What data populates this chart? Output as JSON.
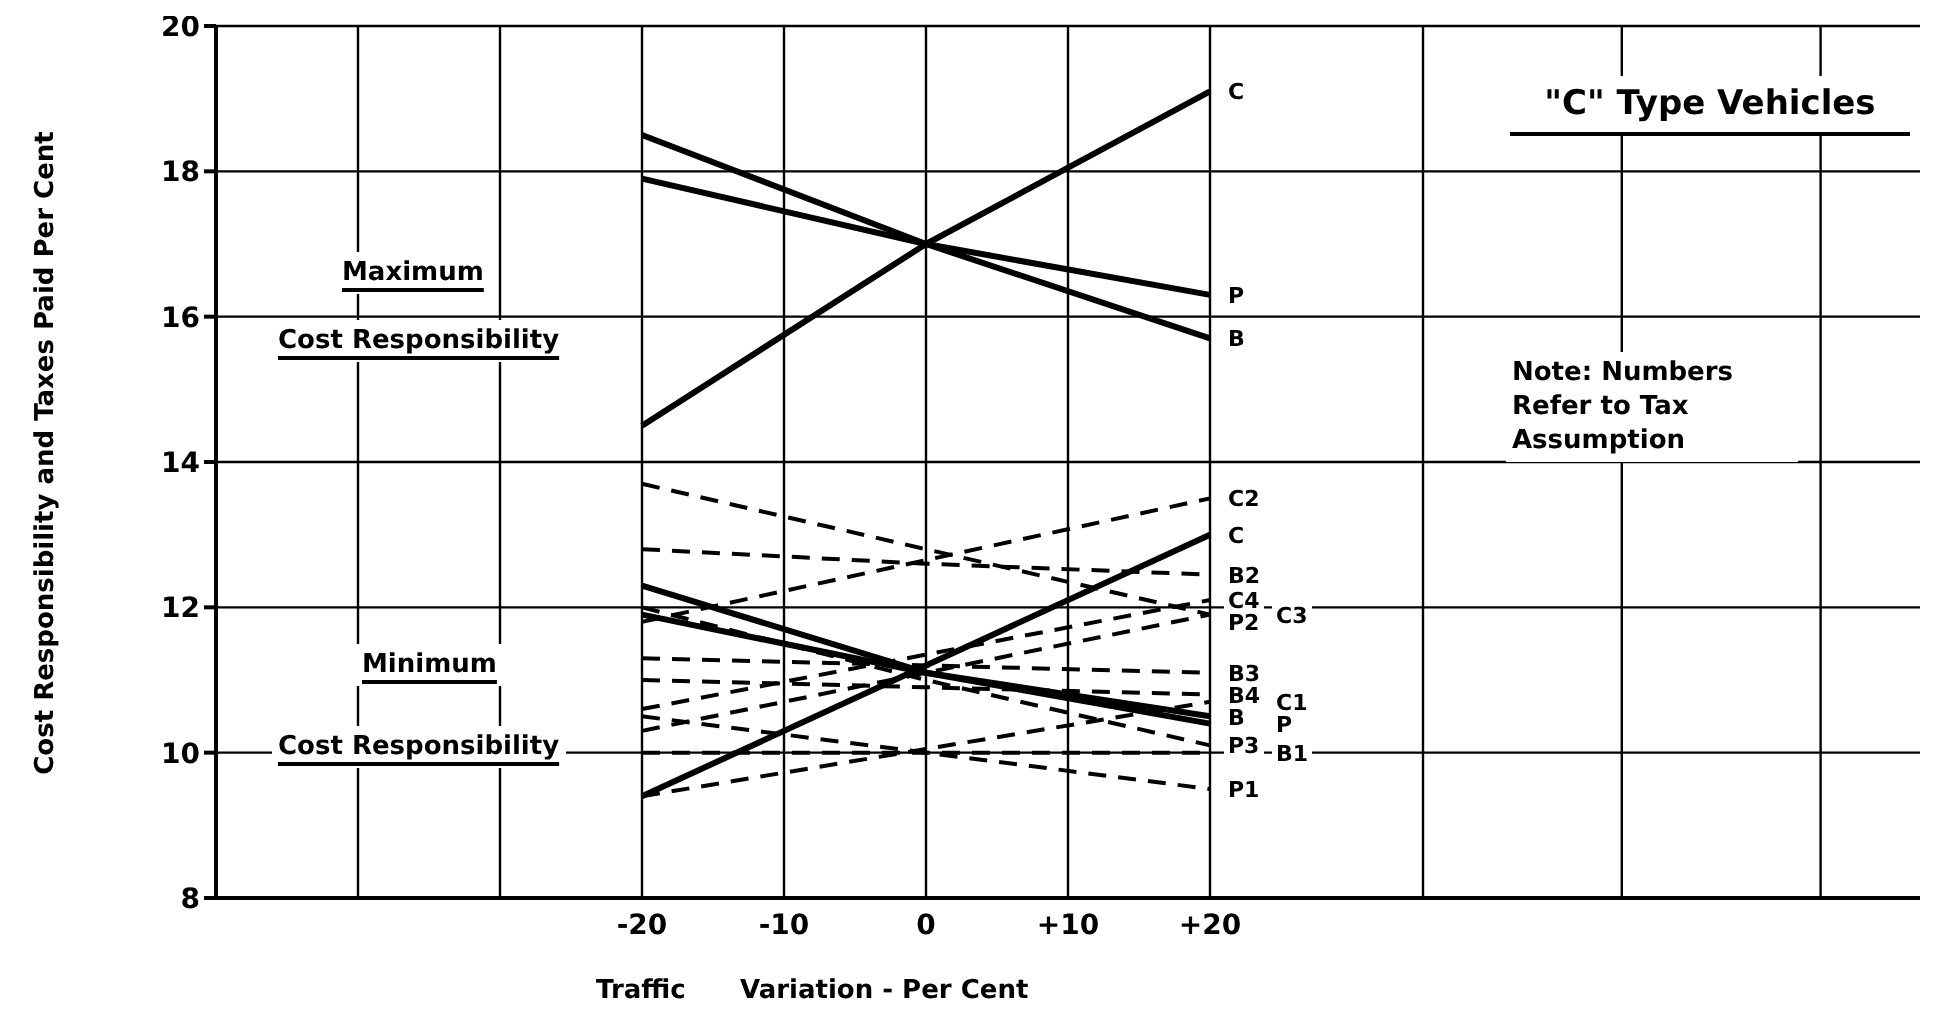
{
  "chart_data": {
    "type": "line",
    "title": "\"C\" Type Vehicles",
    "xlabel": "Traffic      Variation - Per Cent",
    "ylabel": "Cost Responsibility and Taxes Paid Per Cent",
    "x": [
      -20,
      0,
      20
    ],
    "xlim": [
      -50,
      70
    ],
    "xticks": [
      {
        "value": -50,
        "label": null
      },
      {
        "value": -40,
        "label": null
      },
      {
        "value": -30,
        "label": null
      },
      -20,
      -10,
      0,
      {
        "value": 10,
        "label": "+10"
      },
      {
        "value": 20,
        "label": "+20"
      },
      {
        "value": 35,
        "label": null
      },
      {
        "value": 49,
        "label": null
      },
      {
        "value": 63,
        "label": null
      }
    ],
    "ylim": [
      8,
      20
    ],
    "yticks": [
      8,
      10,
      12,
      14,
      16,
      18,
      20
    ],
    "grid": true,
    "marker": "none",
    "series": [
      {
        "name": "C",
        "color": "#000000",
        "line_style": "solid",
        "values": [
          14.5,
          17.0,
          19.1
        ]
      },
      {
        "name": "P",
        "color": "#000000",
        "line_style": "solid",
        "values": [
          17.9,
          17.0,
          16.3
        ]
      },
      {
        "name": "B",
        "color": "#000000",
        "line_style": "solid",
        "values": [
          18.5,
          17.0,
          15.7
        ]
      },
      {
        "name": "C",
        "color": "#000000",
        "line_style": "solid",
        "values": [
          9.4,
          11.2,
          13.0
        ]
      },
      {
        "name": "P",
        "color": "#000000",
        "line_style": "solid",
        "values": [
          11.9,
          11.1,
          10.4
        ]
      },
      {
        "name": "B",
        "color": "#000000",
        "line_style": "solid",
        "values": [
          12.3,
          11.1,
          10.5
        ]
      },
      {
        "name": "C2",
        "color": "#000000",
        "line_style": "dashed",
        "values": [
          11.8,
          12.65,
          13.5
        ]
      },
      {
        "name": "B2",
        "color": "#000000",
        "line_style": "dashed",
        "values": [
          12.8,
          12.6,
          12.45
        ]
      },
      {
        "name": "C4",
        "color": "#000000",
        "line_style": "dashed",
        "values": [
          10.6,
          11.35,
          12.1
        ]
      },
      {
        "name": "C3",
        "color": "#000000",
        "line_style": "dashed",
        "values": [
          10.3,
          11.1,
          11.9
        ]
      },
      {
        "name": "P2",
        "color": "#000000",
        "line_style": "dashed",
        "values": [
          13.7,
          12.8,
          11.9
        ]
      },
      {
        "name": "B3",
        "color": "#000000",
        "line_style": "dashed",
        "values": [
          11.3,
          11.2,
          11.1
        ]
      },
      {
        "name": "B4",
        "color": "#000000",
        "line_style": "dashed",
        "values": [
          11.0,
          10.9,
          10.8
        ]
      },
      {
        "name": "C1",
        "color": "#000000",
        "line_style": "dashed",
        "values": [
          9.4,
          10.05,
          10.7
        ]
      },
      {
        "name": "P3",
        "color": "#000000",
        "line_style": "dashed",
        "values": [
          12.0,
          11.0,
          10.1
        ]
      },
      {
        "name": "B1",
        "color": "#000000",
        "line_style": "dashed",
        "values": [
          10.0,
          10.0,
          10.0
        ]
      },
      {
        "name": "P1",
        "color": "#000000",
        "line_style": "dashed",
        "values": [
          10.5,
          10.0,
          9.5
        ]
      }
    ],
    "annotations": [
      "Maximum",
      "Cost Responsibility",
      "Minimum",
      "Cost Responsibility",
      "Note: Numbers Refer to Tax Assumption"
    ]
  }
}
